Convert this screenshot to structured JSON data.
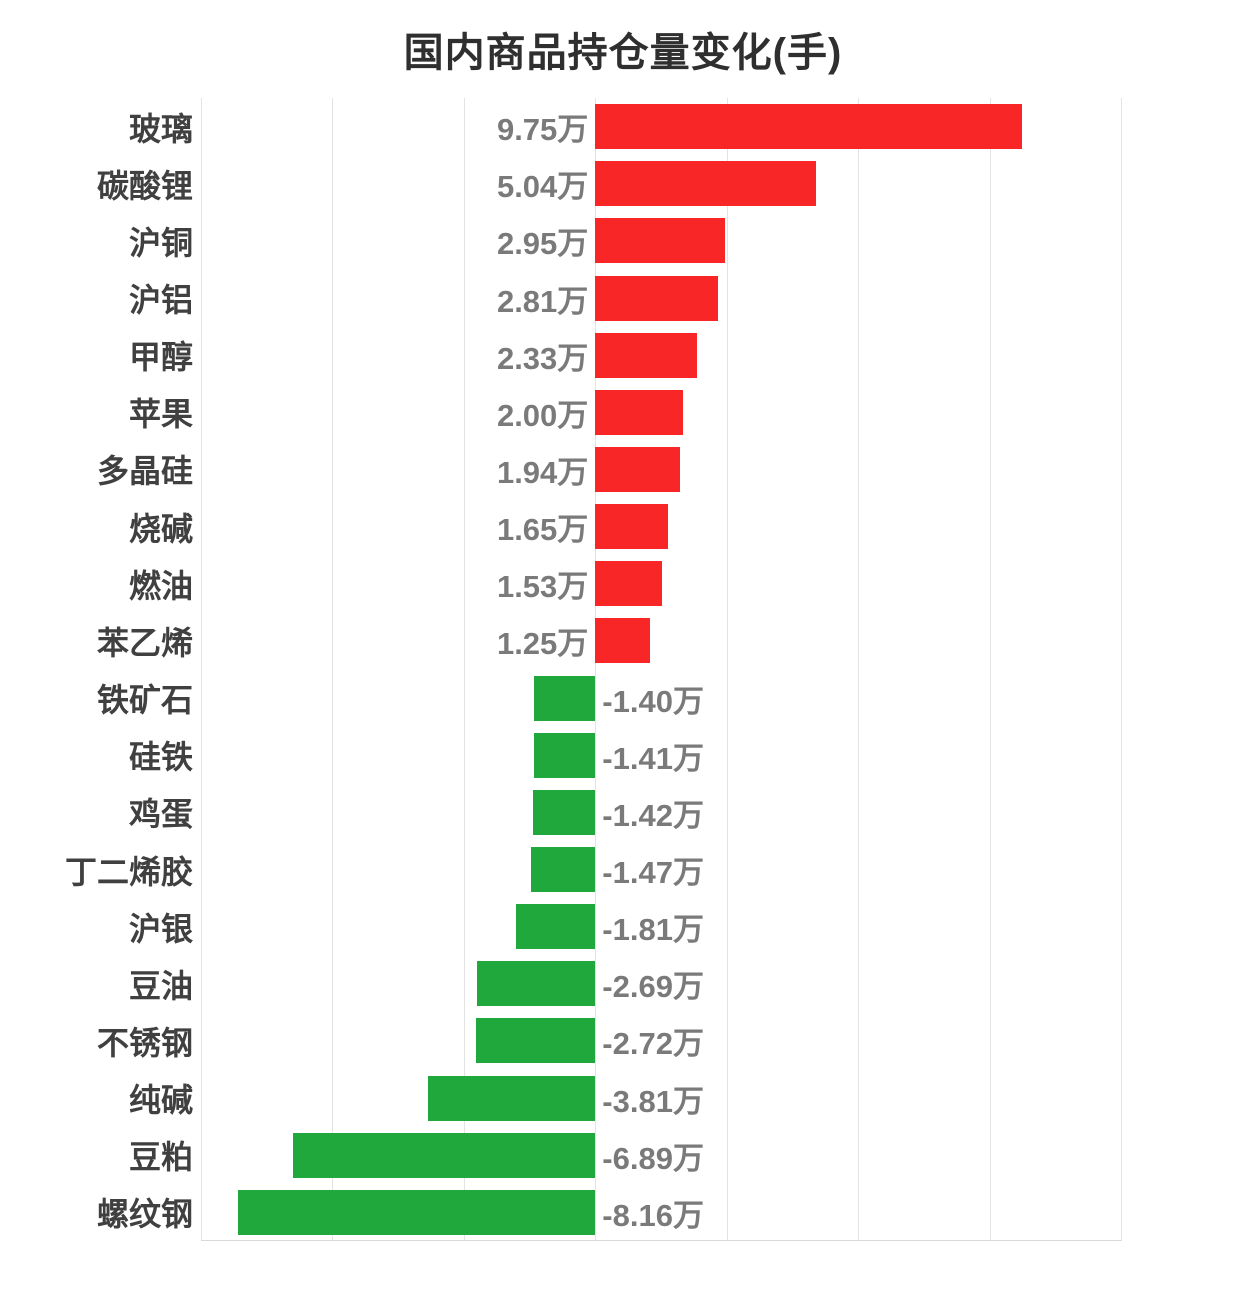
{
  "title": "国内商品持仓量变化(手)",
  "chart_data": {
    "type": "bar",
    "orientation": "horizontal",
    "title": "国内商品持仓量变化(手)",
    "value_unit": "万",
    "categories": [
      "玻璃",
      "碳酸锂",
      "沪铜",
      "沪铝",
      "甲醇",
      "苹果",
      "多晶硅",
      "烧碱",
      "燃油",
      "苯乙烯",
      "铁矿石",
      "硅铁",
      "鸡蛋",
      "丁二烯胶",
      "沪银",
      "豆油",
      "不锈钢",
      "纯碱",
      "豆粕",
      "螺纹钢"
    ],
    "values": [
      9.75,
      5.04,
      2.95,
      2.81,
      2.33,
      2.0,
      1.94,
      1.65,
      1.53,
      1.25,
      -1.4,
      -1.41,
      -1.42,
      -1.47,
      -1.81,
      -2.69,
      -2.72,
      -3.81,
      -6.89,
      -8.16
    ],
    "value_labels": [
      "9.75万",
      "5.04万",
      "2.95万",
      "2.81万",
      "2.33万",
      "2.00万",
      "1.94万",
      "1.65万",
      "1.53万",
      "1.25万",
      "-1.40万",
      "-1.41万",
      "-1.42万",
      "-1.47万",
      "-1.81万",
      "-2.69万",
      "-2.72万",
      "-3.81万",
      "-6.89万",
      "-8.16万"
    ],
    "xlim": [
      -9,
      12
    ],
    "grid_step": 3,
    "grid": true,
    "legend_position": "none",
    "colors": {
      "positive_bar": "#f82626",
      "negative_bar": "#21a83c",
      "title_text": "#2f2f2f",
      "category_text": "#404040",
      "value_text": "#7a7a7a",
      "gridline": "#e3e3e3",
      "axis_line": "#d9d9d9",
      "background": "#ffffff"
    }
  }
}
